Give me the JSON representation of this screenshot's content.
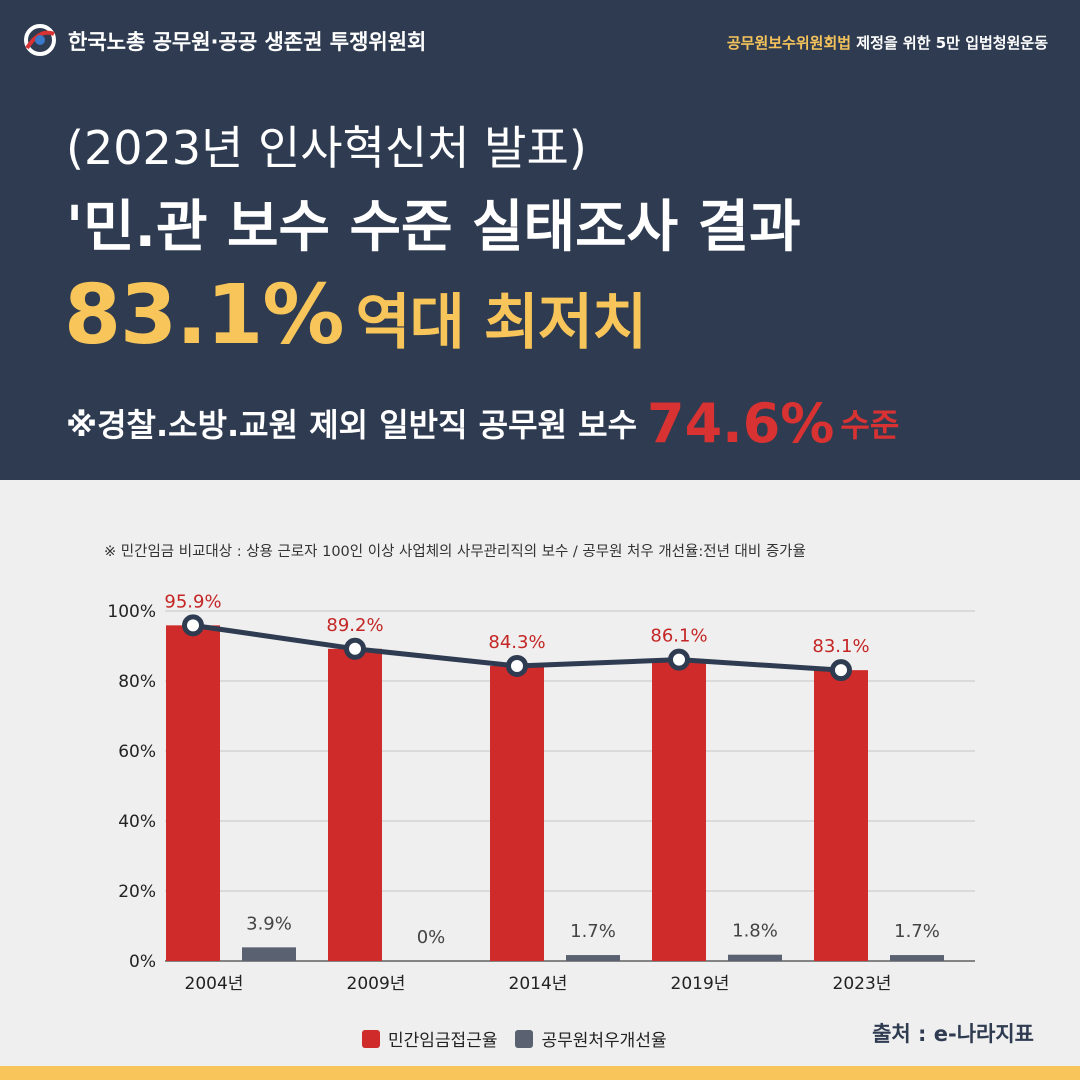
{
  "header": {
    "org_name": "한국노총 공무원·공공 생존권 투쟁위원회",
    "campaign_highlight": "공무원보수위원회법",
    "campaign_rest": " 제정을 위한 5만 입법청원운동",
    "line1": "(2023년 인사혁신처 발표)",
    "line2": "'민.관 보수 수준 실태조사 결과",
    "line3_value": "83.1%",
    "line3_text": "역대 최저치",
    "line4_text": "※경찰.소방.교원 제외 일반직 공무원 보수",
    "line4_value": "74.6%",
    "line4_suffix": "수준"
  },
  "note": "※ 민간임금 비교대상 : 상용 근로자 100인 이상 사업체의 사무관리직의 보수 / 공무원 처우 개선율:전년 대비 증가율",
  "chart_data": {
    "type": "bar",
    "categories": [
      "2004년",
      "2009년",
      "2014년",
      "2019년",
      "2023년"
    ],
    "series": [
      {
        "name": "민간임금접근율",
        "values": [
          95.9,
          89.2,
          84.3,
          86.1,
          83.1
        ],
        "labels": [
          "95.9%",
          "89.2%",
          "84.3%",
          "86.1%",
          "83.1%"
        ],
        "color": "#cf2b2b",
        "line_overlay": true
      },
      {
        "name": "공무원처우개선율",
        "values": [
          3.9,
          0,
          1.7,
          1.8,
          1.7
        ],
        "labels": [
          "3.9%",
          "0%",
          "1.7%",
          "1.8%",
          "1.7%"
        ],
        "color": "#5a6170"
      }
    ],
    "yticks": [
      "0%",
      "20%",
      "40%",
      "60%",
      "80%",
      "100%"
    ],
    "ylim": [
      0,
      100
    ],
    "line_color": "#2e3b50",
    "grid": true,
    "legend": "bottom-center"
  },
  "source": "출처 : e-나라지표"
}
